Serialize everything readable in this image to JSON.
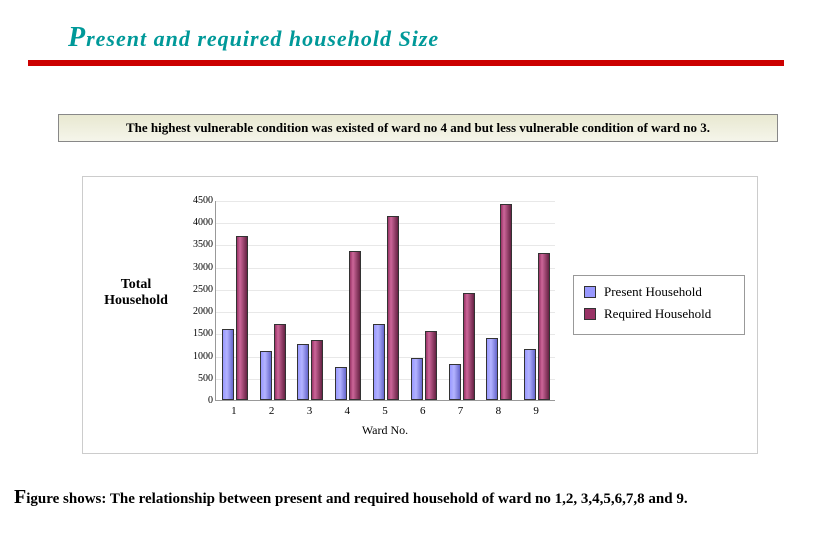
{
  "title": {
    "dropcap": "P",
    "rest": "resent and  required household Size",
    "color": "#009999",
    "underline_color": "#cc0000"
  },
  "info_bar": {
    "text": "The  highest vulnerable condition was existed of ward no 4  and but less vulnerable condition  of ward no 3.",
    "border_color": "#888888"
  },
  "chart": {
    "type": "bar",
    "y_axis_label_line1": "Total",
    "y_axis_label_line2": "Household",
    "x_axis_label": "Ward No.",
    "ylim": [
      0,
      4500
    ],
    "ytick_step": 500,
    "yticks": [
      "0",
      "500",
      "1000",
      "1500",
      "2000",
      "2500",
      "3000",
      "3500",
      "4000",
      "4500"
    ],
    "categories": [
      "1",
      "2",
      "3",
      "4",
      "5",
      "6",
      "7",
      "8",
      "9"
    ],
    "series": [
      {
        "name": "Present Household",
        "color": "#9999ff",
        "values": [
          1600,
          1100,
          1250,
          750,
          1700,
          950,
          800,
          1400,
          1150
        ]
      },
      {
        "name": "Required Household",
        "color": "#993366",
        "values": [
          3700,
          1700,
          1350,
          3350,
          4150,
          1550,
          2400,
          4400,
          3300
        ]
      }
    ],
    "background_color": "#ffffff",
    "grid_color": "#e8e8e8",
    "legend": {
      "items": [
        "Present Household",
        "Required Household"
      ],
      "swatch_colors": [
        "#9999ff",
        "#993366"
      ]
    }
  },
  "caption": {
    "dropcap": "F",
    "rest": "igure shows: The  relationship between present and required household of ward no 1,2, 3,4,5,6,7,8 and 9."
  }
}
